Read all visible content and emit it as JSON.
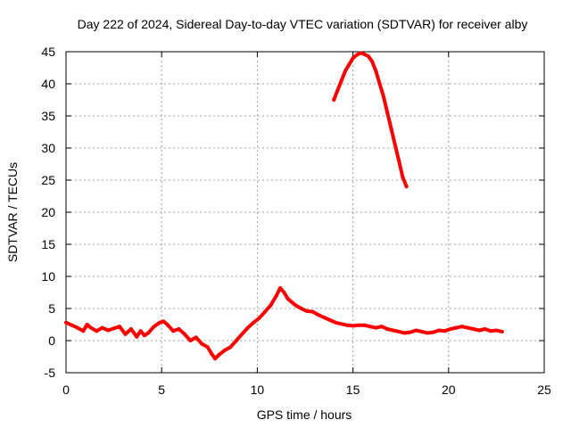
{
  "chart_data": {
    "type": "line",
    "title": "Day 222 of 2024, Sidereal Day-to-day VTEC variation (SDTVAR) for receiver alby",
    "xlabel": "GPS time / hours",
    "ylabel": "SDTVAR / TECUs",
    "xlim": [
      0,
      25
    ],
    "ylim": [
      -5,
      45
    ],
    "xticks": [
      0,
      5,
      10,
      15,
      20,
      25
    ],
    "yticks": [
      -5,
      0,
      5,
      10,
      15,
      20,
      25,
      30,
      35,
      40,
      45
    ],
    "grid": true,
    "series": [
      {
        "name": "SDTVAR",
        "color": "#ff0000",
        "segments": [
          {
            "x": [
              0.0,
              0.3,
              0.6,
              0.9,
              1.1,
              1.3,
              1.6,
              1.9,
              2.2,
              2.5,
              2.8,
              3.1,
              3.4,
              3.7,
              3.9,
              4.1,
              4.3,
              4.6,
              4.9,
              5.1,
              5.3,
              5.6,
              5.9,
              6.2,
              6.5,
              6.8,
              7.1,
              7.4,
              7.6,
              7.8,
              8.0,
              8.3,
              8.6,
              8.9,
              9.2,
              9.5,
              9.8,
              10.1,
              10.4,
              10.7,
              11.0,
              11.2,
              11.4,
              11.6,
              11.8,
              12.0,
              12.3,
              12.6,
              12.9,
              13.2,
              13.5,
              13.8,
              14.1,
              14.4,
              14.7,
              15.0,
              15.3,
              15.6,
              15.9,
              16.2,
              16.5,
              16.8,
              17.1,
              17.4,
              17.7,
              18.0,
              18.3,
              18.6,
              18.9,
              19.2,
              19.5,
              19.8,
              20.1,
              20.4,
              20.7,
              21.0,
              21.3,
              21.6,
              21.9,
              22.2,
              22.5,
              22.8
            ],
            "y": [
              2.8,
              2.4,
              2.0,
              1.5,
              2.5,
              2.0,
              1.5,
              2.0,
              1.6,
              1.9,
              2.2,
              1.0,
              1.8,
              0.6,
              1.5,
              0.8,
              1.2,
              2.2,
              2.8,
              3.0,
              2.5,
              1.5,
              1.8,
              1.0,
              0.0,
              0.5,
              -0.5,
              -1.0,
              -2.0,
              -2.8,
              -2.2,
              -1.5,
              -1.0,
              0.0,
              1.0,
              2.0,
              2.8,
              3.5,
              4.5,
              5.5,
              7.0,
              8.2,
              7.5,
              6.5,
              6.0,
              5.5,
              5.0,
              4.6,
              4.5,
              4.0,
              3.6,
              3.2,
              2.8,
              2.6,
              2.4,
              2.3,
              2.4,
              2.4,
              2.2,
              2.0,
              2.2,
              1.8,
              1.6,
              1.4,
              1.2,
              1.3,
              1.6,
              1.4,
              1.2,
              1.3,
              1.6,
              1.5,
              1.8,
              2.0,
              2.2,
              2.0,
              1.8,
              1.6,
              1.8,
              1.5,
              1.6,
              1.4
            ]
          },
          {
            "x": [
              14.0,
              14.2,
              14.4,
              14.6,
              14.8,
              15.0,
              15.2,
              15.4,
              15.6,
              15.8,
              16.0,
              16.2,
              16.4,
              16.6,
              16.8,
              17.0,
              17.2,
              17.4,
              17.6,
              17.8
            ],
            "y": [
              37.5,
              39.0,
              40.5,
              42.0,
              43.0,
              44.0,
              44.5,
              44.8,
              44.6,
              44.3,
              43.5,
              42.0,
              40.0,
              38.0,
              35.5,
              33.0,
              30.5,
              28.0,
              25.5,
              24.0
            ]
          }
        ]
      }
    ]
  }
}
